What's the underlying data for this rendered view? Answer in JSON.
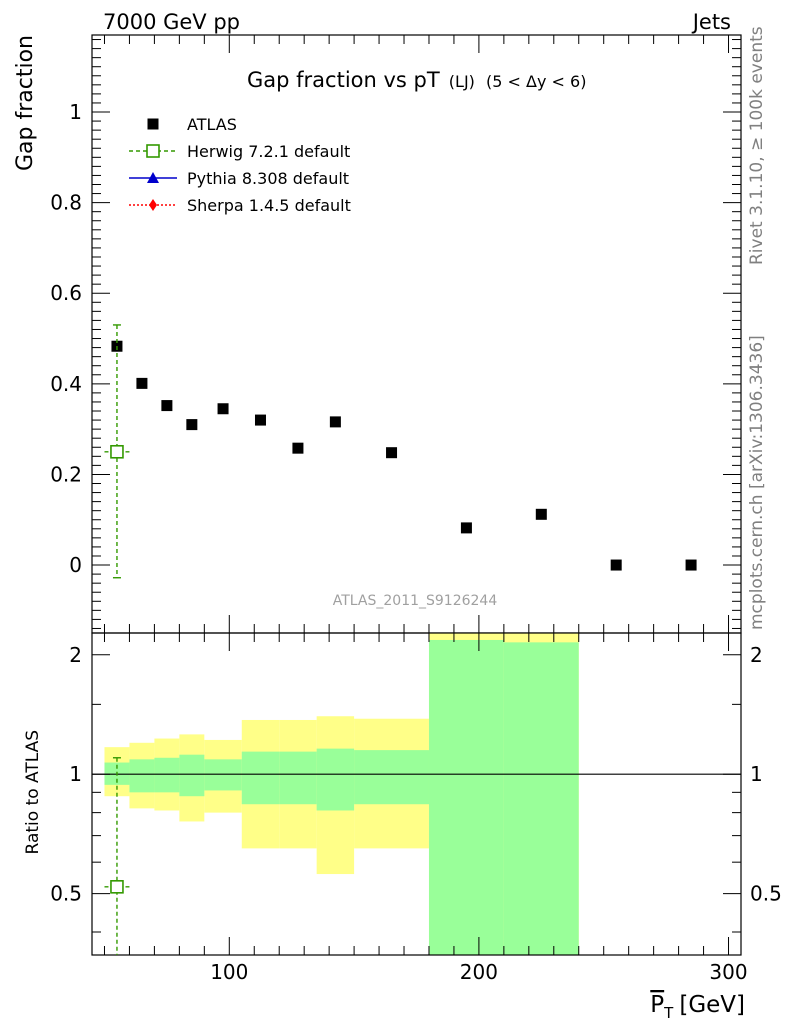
{
  "header": {
    "left": "7000 GeV pp",
    "right": "Jets"
  },
  "side_labels": {
    "rivet": "Rivet 3.1.10, ≥ 100k events",
    "mcplots": "mcplots.cern.ch [arXiv:1306.3436]"
  },
  "chart_data": [
    {
      "type": "scatter",
      "title": "Gap fraction vs pT",
      "title_sub": "(LJ)",
      "title_range": "(5 < Δy < 6)",
      "ylabel": "Gap fraction",
      "watermark": "ATLAS_2011_S9126244",
      "xlim": [
        45,
        305
      ],
      "ylim": [
        -0.15,
        1.17
      ],
      "yticks": [
        0,
        0.2,
        0.4,
        0.6,
        0.8,
        1
      ],
      "ytick_labels": [
        "0",
        "0.2",
        "0.4",
        "0.6",
        "0.8",
        "1"
      ],
      "legend": [
        {
          "name": "ATLAS",
          "color": "#000000",
          "marker": "square"
        },
        {
          "name": "Herwig 7.2.1 default",
          "color": "#339900",
          "marker": "open-square",
          "dashed": true
        },
        {
          "name": "Pythia 8.308 default",
          "color": "#0000cc",
          "marker": "triangle"
        },
        {
          "name": "Sherpa 1.4.5 default",
          "color": "#ff0000",
          "marker": "diamond",
          "dotted": true
        }
      ],
      "series": [
        {
          "name": "ATLAS",
          "x": [
            55,
            65,
            75,
            85,
            97.5,
            112.5,
            127.5,
            142.5,
            165,
            195,
            225,
            255,
            285
          ],
          "y": [
            0.483,
            0.401,
            0.352,
            0.31,
            0.345,
            0.32,
            0.258,
            0.316,
            0.248,
            0.082,
            0.112,
            0.0,
            0.0
          ],
          "xlow": [
            50,
            60,
            70,
            80,
            90,
            105,
            120,
            135,
            150,
            180,
            210,
            240,
            270
          ],
          "xhigh": [
            60,
            70,
            80,
            90,
            105,
            120,
            135,
            150,
            180,
            210,
            240,
            270,
            300
          ]
        },
        {
          "name": "Herwig 7.2.1 default",
          "x": [
            55
          ],
          "y": [
            0.25
          ],
          "yerr_low": [
            0.278
          ],
          "yerr_high": [
            0.28
          ],
          "xlow": [
            50
          ],
          "xhigh": [
            60
          ]
        }
      ]
    },
    {
      "type": "area",
      "ylabel": "Ratio to ATLAS",
      "xlabel": "P_T [GeV]",
      "xlabel_main": "P",
      "xlabel_sub": "T",
      "xlabel_unit": "[GeV]",
      "xlim": [
        45,
        305
      ],
      "ylim": [
        0.35,
        2.27
      ],
      "xticks": [
        100,
        200,
        300
      ],
      "xtick_labels": [
        "100",
        "200",
        "300"
      ],
      "yticks": [
        0.5,
        1,
        2
      ],
      "ytick_labels": [
        "0.5",
        "1",
        "2"
      ],
      "bands": [
        {
          "name": "stat+syst",
          "color": "#ffff88",
          "xlow": [
            50,
            60,
            70,
            80,
            90,
            105,
            120,
            135,
            150,
            180,
            210
          ],
          "xhigh": [
            60,
            70,
            80,
            90,
            105,
            120,
            135,
            150,
            180,
            210,
            240
          ],
          "low": [
            0.88,
            0.82,
            0.81,
            0.76,
            0.8,
            0.65,
            0.65,
            0.56,
            0.65,
            0.0,
            0.0
          ],
          "high": [
            1.17,
            1.2,
            1.23,
            1.26,
            1.22,
            1.37,
            1.37,
            1.4,
            1.38,
            2.27,
            2.27
          ]
        },
        {
          "name": "stat",
          "color": "#99ff99",
          "xlow": [
            50,
            60,
            70,
            80,
            90,
            105,
            120,
            135,
            150,
            180,
            210
          ],
          "xhigh": [
            60,
            70,
            80,
            90,
            105,
            120,
            135,
            150,
            180,
            210,
            240
          ],
          "low": [
            0.94,
            0.9,
            0.9,
            0.88,
            0.91,
            0.84,
            0.84,
            0.81,
            0.84,
            0.0,
            0.0
          ],
          "high": [
            1.07,
            1.09,
            1.1,
            1.12,
            1.09,
            1.14,
            1.14,
            1.16,
            1.15,
            2.18,
            2.15
          ]
        }
      ],
      "series": [
        {
          "name": "Herwig 7.2.1 default",
          "x": [
            55
          ],
          "y": [
            0.52
          ],
          "yerr_low": [
            0.52
          ],
          "yerr_high": [
            0.58
          ],
          "xlow": [
            50
          ],
          "xhigh": [
            60
          ]
        }
      ]
    }
  ]
}
